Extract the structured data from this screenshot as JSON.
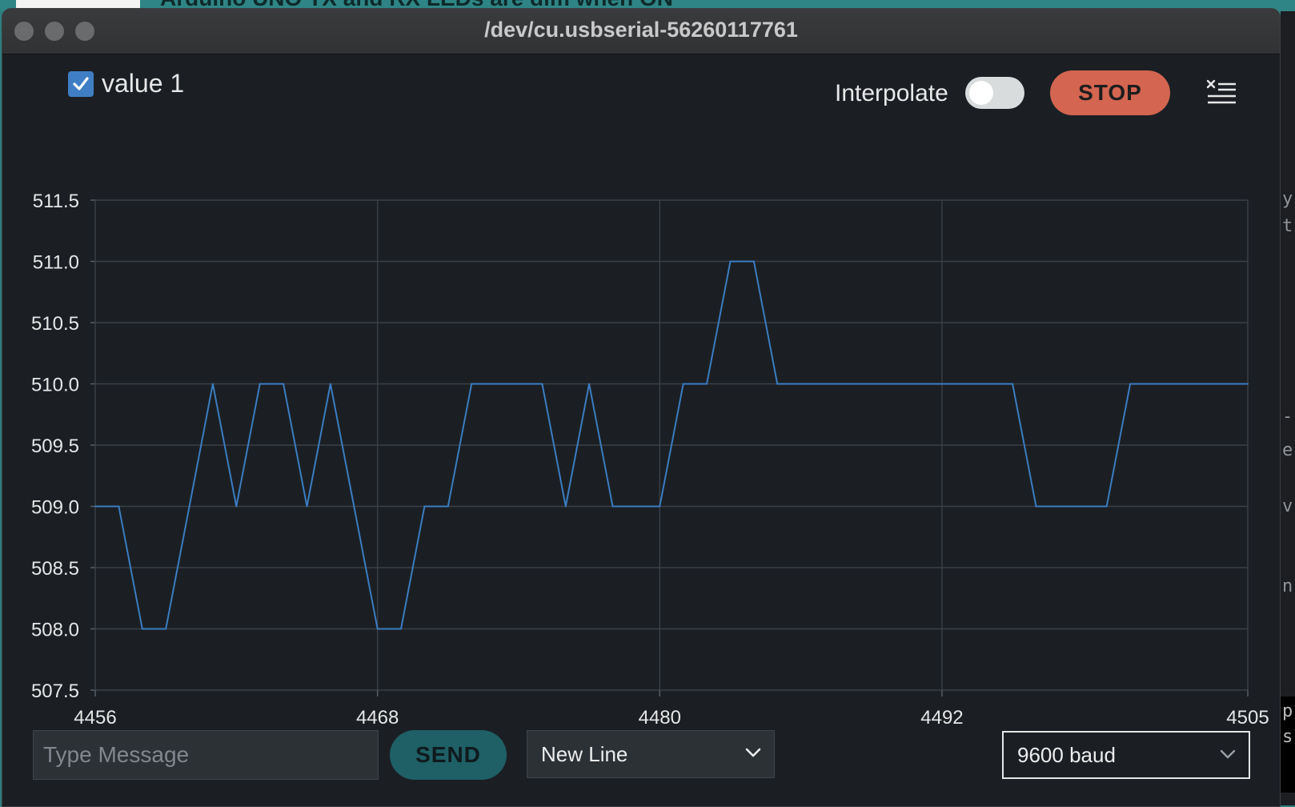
{
  "background": {
    "behind_title": "Arduino UNO TX and RX LEDs are dim when ON",
    "right_fragments": [
      "y",
      "t",
      "-",
      "e",
      "v",
      "n",
      "p",
      "s"
    ]
  },
  "window": {
    "title": "/dev/cu.usbserial-56260117761"
  },
  "legend": {
    "series_label": "value 1",
    "checked": true,
    "series_color": "#3b7cc0"
  },
  "controls": {
    "interpolate_label": "Interpolate",
    "interpolate_on": false,
    "stop_label": "STOP",
    "stop_color": "#d36551",
    "clear_icon": "clear-list-icon"
  },
  "chart_data": {
    "type": "line",
    "title": "",
    "xlabel": "",
    "ylabel": "",
    "xlim": [
      4456,
      4505
    ],
    "ylim": [
      507.5,
      511.5
    ],
    "x_ticks": [
      "4456",
      "4468",
      "4480",
      "4492",
      "4505"
    ],
    "x_tick_values": [
      4456,
      4468,
      4480,
      4492,
      4505
    ],
    "y_ticks": [
      "511.5",
      "511.0",
      "510.5",
      "510.0",
      "509.5",
      "509.0",
      "508.5",
      "508.0",
      "507.5"
    ],
    "y_tick_values": [
      511.5,
      511.0,
      510.5,
      510.0,
      509.5,
      509.0,
      508.5,
      508.0,
      507.5
    ],
    "grid": true,
    "legend_position": "top-left",
    "series": [
      {
        "name": "value 1",
        "color": "#3b7cc0",
        "x": [
          4456,
          4457,
          4458,
          4459,
          4460,
          4461,
          4462,
          4463,
          4464,
          4465,
          4466,
          4467,
          4468,
          4469,
          4470,
          4471,
          4472,
          4473,
          4474,
          4475,
          4476,
          4477,
          4478,
          4479,
          4480,
          4481,
          4482,
          4483,
          4484,
          4485,
          4486,
          4487,
          4488,
          4489,
          4490,
          4491,
          4492,
          4493,
          4494,
          4495,
          4496,
          4497,
          4498,
          4499,
          4500,
          4501,
          4502,
          4503,
          4504,
          4505
        ],
        "values": [
          509,
          509,
          508,
          508,
          509,
          510,
          509,
          510,
          510,
          509,
          510,
          509,
          508,
          508,
          509,
          509,
          510,
          510,
          510,
          510,
          509,
          510,
          509,
          509,
          509,
          510,
          510,
          511,
          511,
          510,
          510,
          510,
          510,
          510,
          510,
          510,
          510,
          510,
          510,
          510,
          509,
          509,
          509,
          509,
          510,
          510,
          510,
          510,
          510,
          510
        ]
      }
    ]
  },
  "footer": {
    "message_placeholder": "Type Message",
    "message_value": "",
    "send_label": "SEND",
    "send_color": "#1f5f66",
    "line_ending": "New Line",
    "baud_rate": "9600 baud"
  }
}
